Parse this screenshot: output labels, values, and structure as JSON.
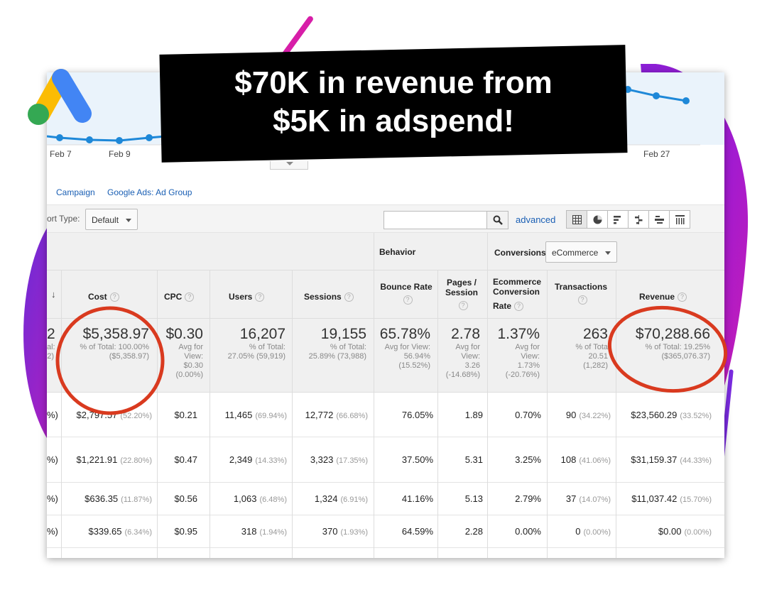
{
  "banner": {
    "line1": "$70K in revenue from",
    "line2": "$5K in adspend!"
  },
  "colors": {
    "ga_blue": "#4285f4",
    "ga_yellow": "#fbbc04",
    "ga_green": "#34a853",
    "annotation_red": "#d93a1f",
    "link_blue": "#1a5fb4",
    "line_blue": "#1e88d8"
  },
  "logo": {
    "icon": "google-ads-logo-icon"
  },
  "chart": {
    "dates": [
      "Feb 7",
      "Feb 9",
      "Feb 27"
    ]
  },
  "subnav": {
    "items": [
      "Campaign",
      "Google Ads: Ad Group"
    ]
  },
  "toolbar": {
    "sort_label": "ort Type:",
    "sort_value": "Default",
    "advanced_label": "advanced",
    "search_icon": "search-icon",
    "view_icons": [
      "grid-view-icon",
      "pie-view-icon",
      "performance-view-icon",
      "comparison-view-icon",
      "term-cloud-icon",
      "pivot-view-icon"
    ]
  },
  "table": {
    "groups": {
      "behavior": "Behavior",
      "conversions": "Conversions",
      "conversions_select": "eCommerce"
    },
    "columns": {
      "cost": "Cost",
      "cpc": "CPC",
      "users": "Users",
      "sessions": "Sessions",
      "bounce_rate": "Bounce Rate",
      "pages_session_1": "Pages /",
      "pages_session_2": "Session",
      "ecom_1": "Ecommerce",
      "ecom_2": "Conversion",
      "ecom_3": "Rate",
      "transactions": "Transactions",
      "revenue": "Revenue",
      "help": "?"
    },
    "totals": {
      "first_big": "2",
      "first_small1": "al:",
      "first_small2": "2)",
      "cost": "$5,358.97",
      "cost_sub1": "% of Total: 100.00%",
      "cost_sub2": "($5,358.97)",
      "cpc": "$0.30",
      "cpc_sub1": "Avg for",
      "cpc_sub2": "View:",
      "cpc_sub3": "$0.30",
      "cpc_sub4": "(0.00%)",
      "users": "16,207",
      "users_sub1": "% of Total:",
      "users_sub2": "27.05% (59,919)",
      "sessions": "19,155",
      "sessions_sub1": "% of Total:",
      "sessions_sub2": "25.89% (73,988)",
      "bounce": "65.78%",
      "bounce_sub1": "Avg for View:",
      "bounce_sub2": "56.94%",
      "bounce_sub3": "(15.52%)",
      "pages": "2.78",
      "pages_sub1": "Avg for",
      "pages_sub2": "View:",
      "pages_sub3": "3.26",
      "pages_sub4": "(-14.68%)",
      "ecom": "1.37%",
      "ecom_sub1": "Avg for",
      "ecom_sub2": "View:",
      "ecom_sub3": "1.73%",
      "ecom_sub4": "(-20.76%)",
      "transactions": "263",
      "trans_sub1": "% of Tota",
      "trans_sub2": "20.51",
      "trans_sub3": "(1,282)",
      "revenue": "$70,288.66",
      "revenue_sub1": "% of Total: 19.25%",
      "revenue_sub2": "($365,076.37)"
    },
    "rows": [
      {
        "lead": "%)",
        "cost": "$2,797.57",
        "cost_pct": "(52.20%)",
        "cpc": "$0.21",
        "users": "11,465",
        "users_pct": "(69.94%)",
        "sessions": "12,772",
        "sessions_pct": "(66.68%)",
        "bounce": "76.05%",
        "pages": "1.89",
        "ecom": "0.70%",
        "trans": "90",
        "trans_pct": "(34.22%)",
        "revenue": "$23,560.29",
        "revenue_pct": "(33.52%)"
      },
      {
        "lead": "%)",
        "cost": "$1,221.91",
        "cost_pct": "(22.80%)",
        "cpc": "$0.47",
        "users": "2,349",
        "users_pct": "(14.33%)",
        "sessions": "3,323",
        "sessions_pct": "(17.35%)",
        "bounce": "37.50%",
        "pages": "5.31",
        "ecom": "3.25%",
        "trans": "108",
        "trans_pct": "(41.06%)",
        "revenue": "$31,159.37",
        "revenue_pct": "(44.33%)"
      },
      {
        "lead": "%)",
        "cost": "$636.35",
        "cost_pct": "(11.87%)",
        "cpc": "$0.56",
        "users": "1,063",
        "users_pct": "(6.48%)",
        "sessions": "1,324",
        "sessions_pct": "(6.91%)",
        "bounce": "41.16%",
        "pages": "5.13",
        "ecom": "2.79%",
        "trans": "37",
        "trans_pct": "(14.07%)",
        "revenue": "$11,037.42",
        "revenue_pct": "(15.70%)"
      },
      {
        "lead": "%)",
        "cost": "$339.65",
        "cost_pct": "(6.34%)",
        "cpc": "$0.95",
        "users": "318",
        "users_pct": "(1.94%)",
        "sessions": "370",
        "sessions_pct": "(1.93%)",
        "bounce": "64.59%",
        "pages": "2.28",
        "ecom": "0.00%",
        "trans": "0",
        "trans_pct": "(0.00%)",
        "revenue": "$0.00",
        "revenue_pct": "(0.00%)"
      }
    ]
  }
}
